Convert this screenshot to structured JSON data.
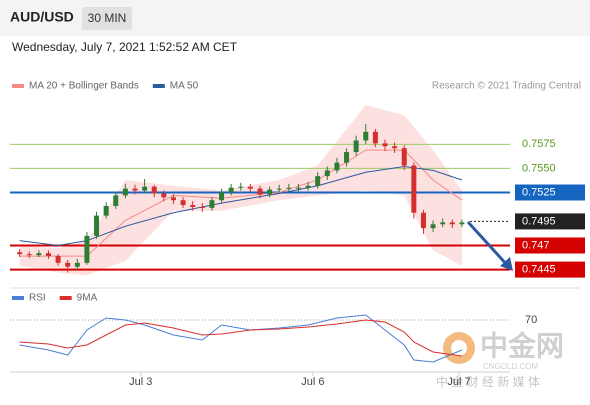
{
  "header": {
    "symbol": "AUD/USD",
    "interval": "30 MIN",
    "timestamp": "Wednesday, July 7, 2021 1:52:52 AM CET"
  },
  "watermark": {
    "brand": "中金网",
    "site": "CNGOLD.COM",
    "slogan": "中 金 财 经 新 媒 体"
  },
  "chart_data": [
    {
      "type": "candlestick",
      "credit": "Research © 2021 Trading Central",
      "xlim": [
        -1,
        51
      ],
      "ylim": [
        0.7429,
        0.7621
      ],
      "up_color": "#2e7d32",
      "down_color": "#d32f2f",
      "ohlc": {
        "open": [
          0.7463,
          0.7461,
          0.746,
          0.7462,
          0.7459,
          0.7452,
          0.7448,
          0.7452,
          0.748,
          0.7501,
          0.7511,
          0.7522,
          0.7529,
          0.7527,
          0.7531,
          0.7524,
          0.752,
          0.7517,
          0.7512,
          0.751,
          0.7509,
          0.7517,
          0.7525,
          0.753,
          0.7531,
          0.7529,
          0.7523,
          0.7528,
          0.7529,
          0.753,
          0.753,
          0.7532,
          0.7542,
          0.7548,
          0.7556,
          0.7567,
          0.7579,
          0.7588,
          0.7576,
          0.7573,
          0.7571,
          0.7553,
          0.7504,
          0.7488,
          0.7492,
          0.7494,
          0.7492
        ],
        "high": [
          0.7466,
          0.7464,
          0.7465,
          0.7465,
          0.7461,
          0.7455,
          0.7456,
          0.7484,
          0.7505,
          0.7515,
          0.7526,
          0.7534,
          0.7533,
          0.7539,
          0.7533,
          0.7527,
          0.7523,
          0.752,
          0.7516,
          0.7514,
          0.752,
          0.7529,
          0.7534,
          0.7535,
          0.7534,
          0.7532,
          0.7531,
          0.7533,
          0.7534,
          0.7534,
          0.7536,
          0.7546,
          0.7552,
          0.7561,
          0.7571,
          0.7584,
          0.7596,
          0.7591,
          0.758,
          0.7577,
          0.7574,
          0.7556,
          0.7507,
          0.7496,
          0.7498,
          0.7497,
          0.7497
        ],
        "low": [
          0.7458,
          0.7457,
          0.7458,
          0.7456,
          0.7449,
          0.7442,
          0.7445,
          0.745,
          0.7477,
          0.7498,
          0.7508,
          0.7519,
          0.7523,
          0.7524,
          0.752,
          0.7516,
          0.7513,
          0.7509,
          0.7506,
          0.7505,
          0.7506,
          0.7514,
          0.7522,
          0.7527,
          0.7525,
          0.7519,
          0.752,
          0.7525,
          0.7526,
          0.7526,
          0.7527,
          0.7529,
          0.7538,
          0.7545,
          0.7552,
          0.7563,
          0.7575,
          0.7572,
          0.7568,
          0.7566,
          0.7548,
          0.7498,
          0.7482,
          0.7484,
          0.7489,
          0.7488,
          0.7489
        ],
        "close": [
          0.7461,
          0.746,
          0.7462,
          0.7459,
          0.7452,
          0.7448,
          0.7452,
          0.748,
          0.7501,
          0.7511,
          0.7522,
          0.7529,
          0.7527,
          0.7531,
          0.7524,
          0.752,
          0.7517,
          0.7512,
          0.751,
          0.7509,
          0.7517,
          0.7525,
          0.753,
          0.7531,
          0.7529,
          0.7523,
          0.7528,
          0.7529,
          0.753,
          0.753,
          0.7532,
          0.7542,
          0.7548,
          0.7556,
          0.7567,
          0.7579,
          0.7588,
          0.7576,
          0.7573,
          0.7571,
          0.7553,
          0.7504,
          0.7488,
          0.7492,
          0.7494,
          0.7492,
          0.7494
        ]
      },
      "series": [
        {
          "name": "MA 20 + Bollinger Bands",
          "color": "#f28b82",
          "band_color": "#fde0e0",
          "x": [
            0,
            4,
            7,
            11,
            16,
            21,
            27,
            31,
            36,
            40,
            43,
            46
          ],
          "values": [
            0.7459,
            0.7459,
            0.7459,
            0.7496,
            0.7522,
            0.7519,
            0.7525,
            0.7538,
            0.7569,
            0.7569,
            0.7538,
            0.7517
          ],
          "upper": [
            0.747,
            0.7467,
            0.7475,
            0.7538,
            0.7532,
            0.7527,
            0.7538,
            0.7553,
            0.7616,
            0.7605,
            0.7569,
            0.7527
          ],
          "lower": [
            0.7449,
            0.7442,
            0.7439,
            0.7454,
            0.7506,
            0.7506,
            0.7517,
            0.7522,
            0.7527,
            0.7522,
            0.7465,
            0.7449
          ]
        },
        {
          "name": "MA 50",
          "color": "#2c5aa0",
          "x": [
            0,
            4,
            7,
            11,
            16,
            21,
            27,
            31,
            36,
            40,
            43,
            46
          ],
          "values": [
            0.7475,
            0.747,
            0.7475,
            0.749,
            0.7504,
            0.7514,
            0.7524,
            0.7532,
            0.7546,
            0.7552,
            0.7548,
            0.7538
          ]
        }
      ],
      "levels": [
        {
          "value": 0.7575,
          "color": "#9ccc65",
          "text_color": "#5b9b1e",
          "boxed": false
        },
        {
          "value": 0.755,
          "label": "0.7550",
          "color": "#9ccc65",
          "text_color": "#5b9b1e",
          "boxed": false
        },
        {
          "value": 0.7525,
          "color": "#1565c0",
          "text_color": "#ffffff",
          "boxed": true
        },
        {
          "value": 0.7495,
          "color": "#222222",
          "text_color": "#ffffff",
          "boxed": true,
          "dotted": true
        },
        {
          "value": 0.747,
          "color": "#d50000",
          "text_color": "#ffffff",
          "boxed": true
        },
        {
          "value": 0.7445,
          "color": "#d50000",
          "text_color": "#ffffff",
          "boxed": true
        }
      ]
    },
    {
      "type": "line",
      "xlim": [
        -1,
        51
      ],
      "ylim": [
        20,
        80
      ],
      "yticks": [
        70
      ],
      "xticks": [
        {
          "value": 12.6,
          "label": "Jul 3"
        },
        {
          "value": 30.5,
          "label": "Jul 6"
        },
        {
          "value": 45.7,
          "label": "Jul 7"
        }
      ],
      "series": [
        {
          "name": "RSI",
          "color": "#4a7fd4",
          "x": [
            0,
            3,
            5,
            7,
            9,
            11,
            13,
            16,
            19,
            21,
            24,
            27,
            30,
            33,
            36,
            38,
            40,
            41,
            43,
            46
          ],
          "values": [
            45,
            40,
            35,
            60,
            72,
            70,
            65,
            55,
            50,
            65,
            60,
            62,
            65,
            72,
            75,
            60,
            45,
            30,
            28,
            40
          ]
        },
        {
          "name": "9MA",
          "color": "#d9302c",
          "x": [
            0,
            3,
            5,
            7,
            9,
            11,
            13,
            16,
            19,
            21,
            24,
            27,
            30,
            33,
            36,
            38,
            40,
            41,
            43,
            46
          ],
          "values": [
            48,
            46,
            42,
            45,
            55,
            65,
            67,
            62,
            55,
            56,
            60,
            61,
            63,
            66,
            70,
            68,
            58,
            48,
            38,
            34
          ]
        }
      ]
    }
  ]
}
